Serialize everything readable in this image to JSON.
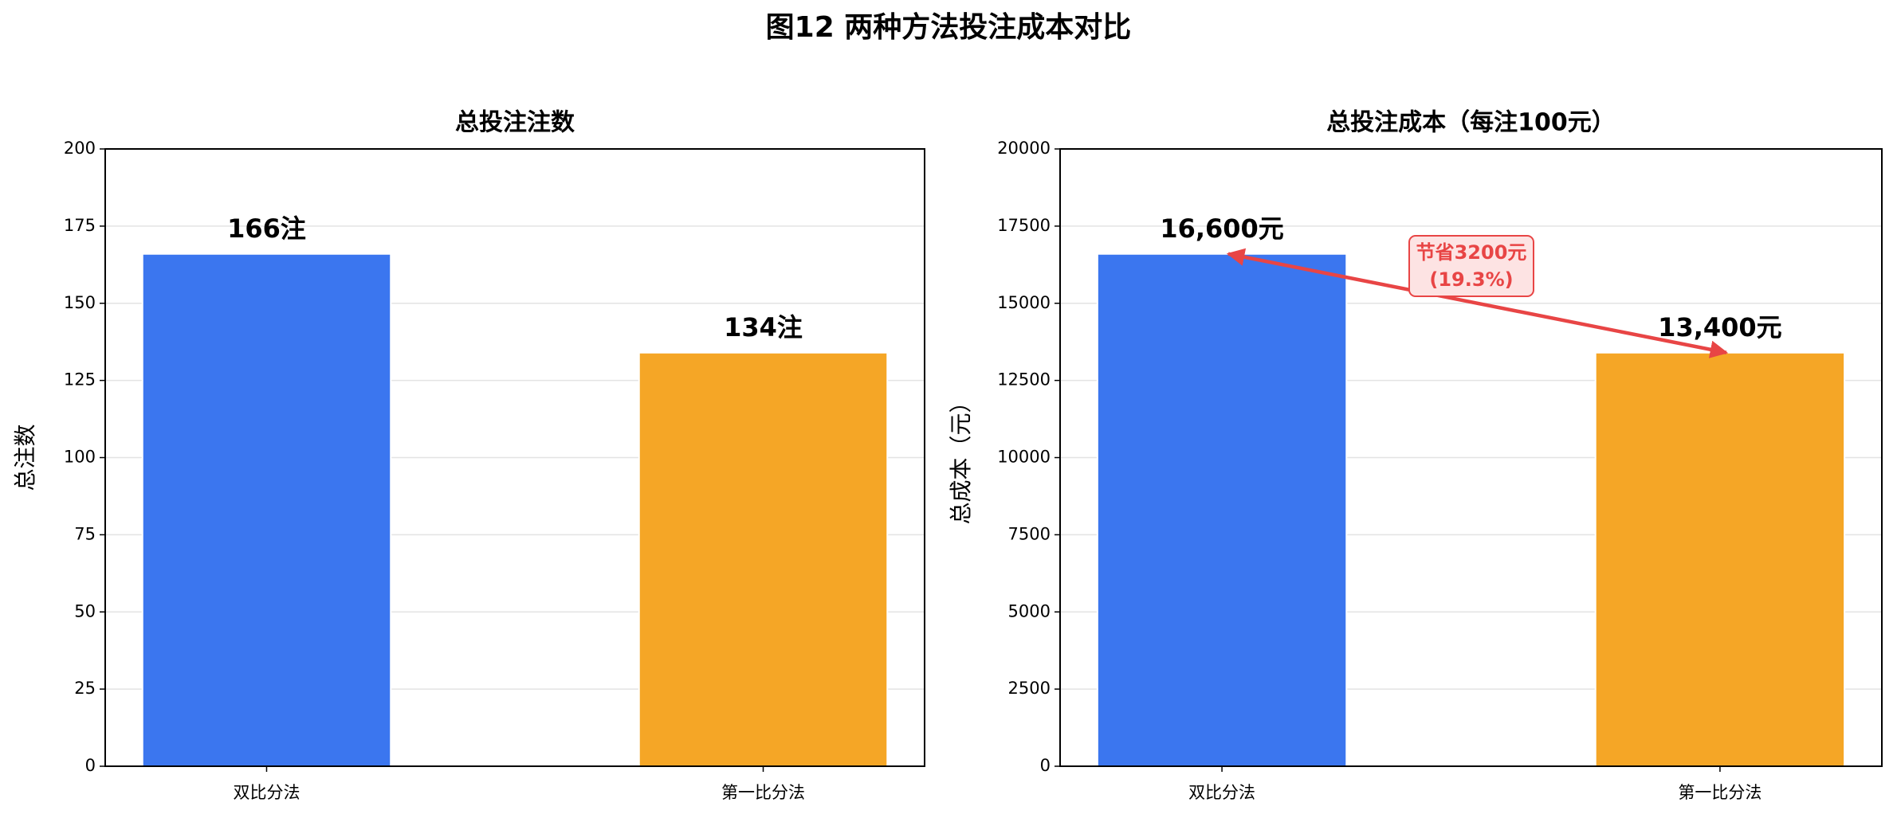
{
  "title": "图12  两种方法投注成本对比",
  "chart_data": [
    {
      "type": "bar",
      "title": "总投注注数",
      "ylabel": "总注数",
      "categories": [
        "双比分法",
        "第一比分法"
      ],
      "values": [
        166,
        134
      ],
      "value_labels": [
        "166注",
        "134注"
      ],
      "colors": [
        "#3b76ef",
        "#f5a626"
      ],
      "ylim": [
        0,
        200
      ],
      "yticks": [
        0,
        25,
        50,
        75,
        100,
        125,
        150,
        175,
        200
      ],
      "grid": true
    },
    {
      "type": "bar",
      "title": "总投注成本（每注100元）",
      "ylabel": "总成本（元）",
      "categories": [
        "双比分法",
        "第一比分法"
      ],
      "values": [
        16600,
        13400
      ],
      "value_labels": [
        "16,600元",
        "13,400元"
      ],
      "colors": [
        "#3b76ef",
        "#f5a626"
      ],
      "ylim": [
        0,
        20000
      ],
      "yticks": [
        0,
        2500,
        5000,
        7500,
        10000,
        12500,
        15000,
        17500,
        20000
      ],
      "grid": true,
      "annotation": {
        "lines": [
          "节省3200元",
          "(19.3%)"
        ],
        "color": "#e84545"
      }
    }
  ]
}
